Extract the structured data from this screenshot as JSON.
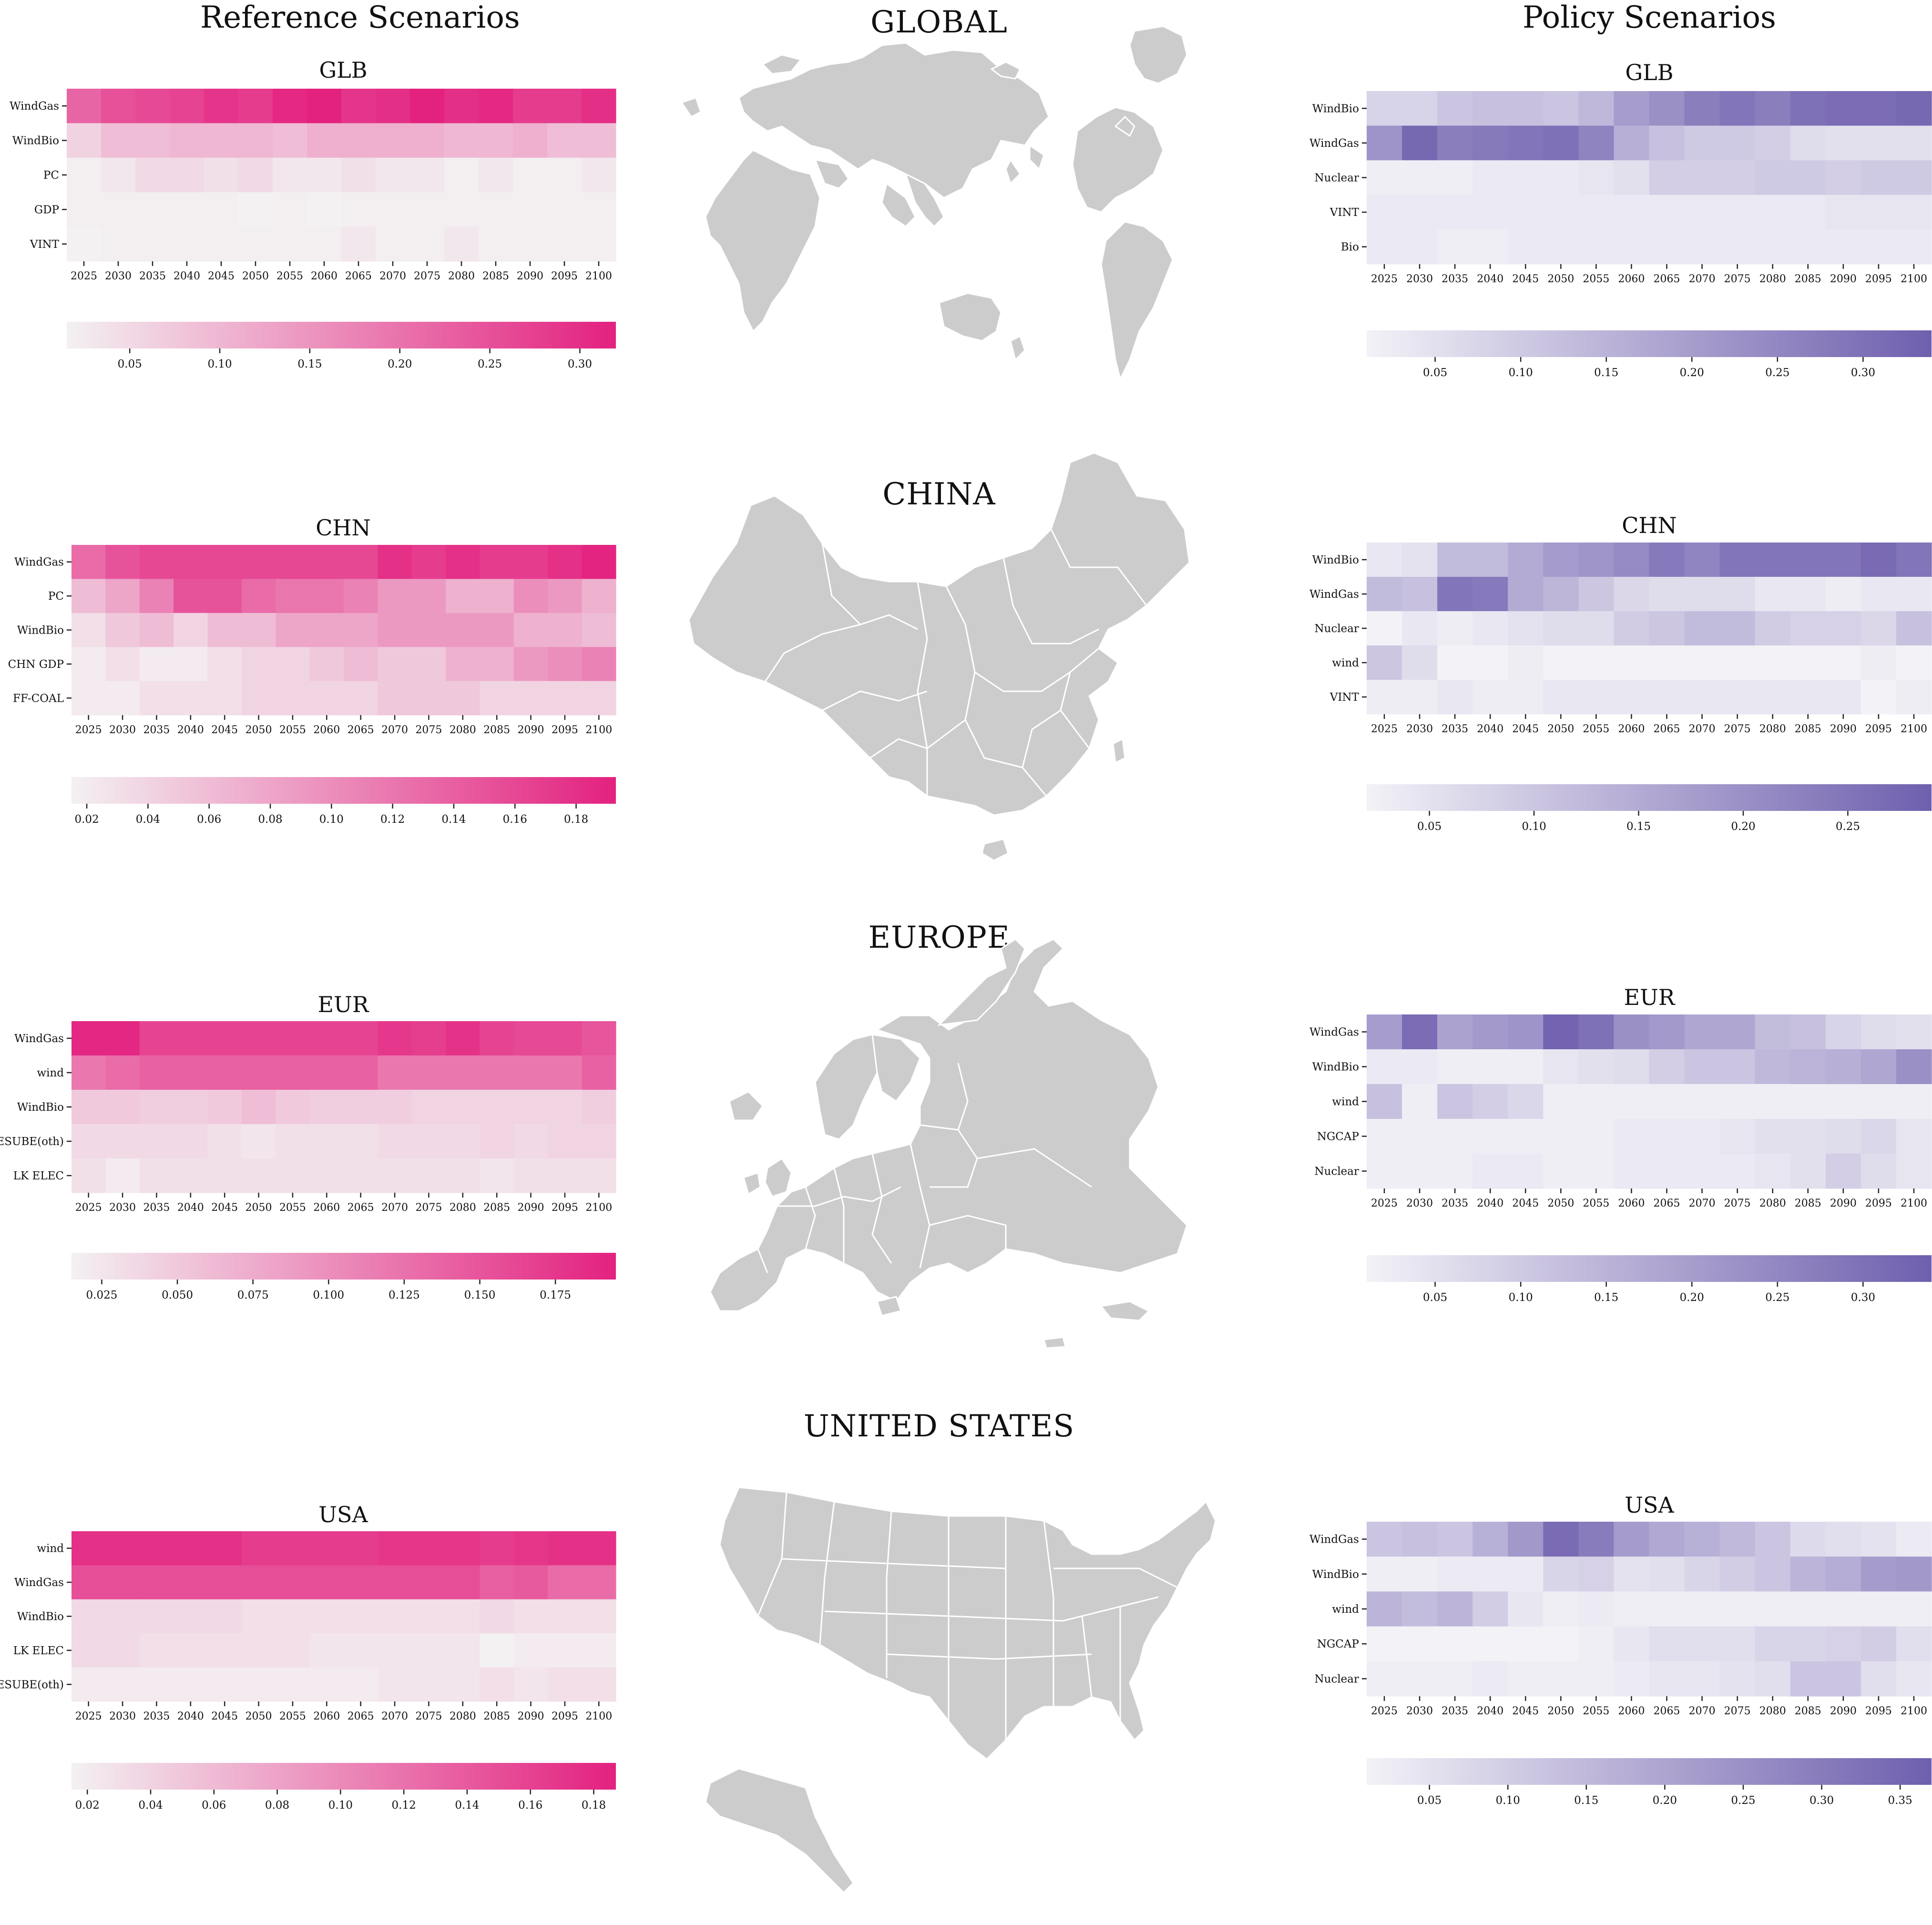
{
  "headers": {
    "reference": "Reference Scenarios",
    "policy": "Policy Scenarios"
  },
  "regions": {
    "global": "GLOBAL",
    "china": "CHINA",
    "europe": "EUROPE",
    "usa": "UNITED STATES"
  },
  "colors": {
    "reference_low": "#f3f1f2",
    "reference_high": "#e3217f",
    "policy_low": "#f3f2f7",
    "policy_high": "#6f5fae",
    "map_fill": "#cccccc",
    "map_border": "#ffffff"
  },
  "chart_data": [
    {
      "id": "ref-glb",
      "type": "heatmap",
      "palette": "reference",
      "title": "GLB",
      "x": [
        "2025",
        "2030",
        "2035",
        "2040",
        "2045",
        "2050",
        "2055",
        "2060",
        "2065",
        "2070",
        "2075",
        "2080",
        "2085",
        "2090",
        "2095",
        "2100"
      ],
      "y": [
        "WindGas",
        "WindBio",
        "PC",
        "GDP",
        "VINT"
      ],
      "values": [
        [
          0.22,
          0.25,
          0.26,
          0.27,
          0.29,
          0.28,
          0.31,
          0.32,
          0.29,
          0.3,
          0.32,
          0.3,
          0.31,
          0.28,
          0.28,
          0.3
        ],
        [
          0.06,
          0.09,
          0.09,
          0.1,
          0.1,
          0.1,
          0.09,
          0.11,
          0.11,
          0.11,
          0.11,
          0.1,
          0.1,
          0.11,
          0.09,
          0.09
        ],
        [
          0.02,
          0.03,
          0.05,
          0.05,
          0.04,
          0.05,
          0.03,
          0.03,
          0.04,
          0.03,
          0.03,
          0.02,
          0.03,
          0.02,
          0.02,
          0.03
        ],
        [
          0.02,
          0.02,
          0.02,
          0.02,
          0.02,
          0.01,
          0.02,
          0.01,
          0.02,
          0.02,
          0.02,
          0.02,
          0.02,
          0.02,
          0.02,
          0.02
        ],
        [
          0.01,
          0.02,
          0.02,
          0.02,
          0.02,
          0.02,
          0.02,
          0.02,
          0.03,
          0.02,
          0.02,
          0.03,
          0.02,
          0.02,
          0.02,
          0.02
        ]
      ],
      "cbar": {
        "min": 0.015,
        "max": 0.32,
        "ticks": [
          0.05,
          0.1,
          0.15,
          0.2,
          0.25,
          0.3
        ],
        "labels": [
          "0.05",
          "0.10",
          "0.15",
          "0.20",
          "0.25",
          "0.30"
        ]
      }
    },
    {
      "id": "pol-glb",
      "type": "heatmap",
      "palette": "policy",
      "title": "GLB",
      "x": [
        "2025",
        "2030",
        "2035",
        "2040",
        "2045",
        "2050",
        "2055",
        "2060",
        "2065",
        "2070",
        "2075",
        "2080",
        "2085",
        "2090",
        "2095",
        "2100"
      ],
      "y": [
        "WindBio",
        "WindGas",
        "Nuclear",
        "VINT",
        "Bio"
      ],
      "values": [
        [
          0.08,
          0.08,
          0.11,
          0.12,
          0.12,
          0.11,
          0.14,
          0.2,
          0.23,
          0.27,
          0.29,
          0.27,
          0.3,
          0.31,
          0.31,
          0.32
        ],
        [
          0.22,
          0.32,
          0.27,
          0.28,
          0.29,
          0.3,
          0.26,
          0.16,
          0.12,
          0.1,
          0.1,
          0.09,
          0.06,
          0.05,
          0.05,
          0.05
        ],
        [
          0.02,
          0.02,
          0.02,
          0.03,
          0.03,
          0.03,
          0.04,
          0.05,
          0.09,
          0.09,
          0.09,
          0.1,
          0.1,
          0.09,
          0.1,
          0.1
        ],
        [
          0.03,
          0.03,
          0.03,
          0.03,
          0.03,
          0.03,
          0.03,
          0.03,
          0.03,
          0.03,
          0.03,
          0.03,
          0.03,
          0.04,
          0.04,
          0.04
        ],
        [
          0.03,
          0.03,
          0.02,
          0.02,
          0.03,
          0.03,
          0.03,
          0.03,
          0.03,
          0.03,
          0.03,
          0.03,
          0.03,
          0.03,
          0.03,
          0.03
        ]
      ],
      "cbar": {
        "min": 0.01,
        "max": 0.34,
        "ticks": [
          0.05,
          0.1,
          0.15,
          0.2,
          0.25,
          0.3
        ],
        "labels": [
          "0.05",
          "0.10",
          "0.15",
          "0.20",
          "0.25",
          "0.30"
        ]
      }
    },
    {
      "id": "ref-chn",
      "type": "heatmap",
      "palette": "reference",
      "title": "CHN",
      "x": [
        "2025",
        "2030",
        "2035",
        "2040",
        "2045",
        "2050",
        "2055",
        "2060",
        "2065",
        "2070",
        "2075",
        "2080",
        "2085",
        "2090",
        "2095",
        "2100"
      ],
      "y": [
        "WindGas",
        "PC",
        "WindBio",
        "CHN GDP",
        "FF-COAL"
      ],
      "values": [
        [
          0.13,
          0.15,
          0.16,
          0.16,
          0.16,
          0.16,
          0.16,
          0.16,
          0.16,
          0.18,
          0.17,
          0.18,
          0.17,
          0.17,
          0.18,
          0.19
        ],
        [
          0.06,
          0.08,
          0.11,
          0.15,
          0.15,
          0.13,
          0.12,
          0.12,
          0.11,
          0.09,
          0.09,
          0.07,
          0.07,
          0.1,
          0.09,
          0.07
        ],
        [
          0.03,
          0.05,
          0.06,
          0.04,
          0.06,
          0.06,
          0.08,
          0.08,
          0.08,
          0.09,
          0.09,
          0.09,
          0.09,
          0.07,
          0.07,
          0.06
        ],
        [
          0.02,
          0.03,
          0.02,
          0.02,
          0.03,
          0.04,
          0.04,
          0.05,
          0.06,
          0.05,
          0.05,
          0.07,
          0.07,
          0.09,
          0.1,
          0.11
        ],
        [
          0.02,
          0.02,
          0.03,
          0.03,
          0.03,
          0.04,
          0.04,
          0.04,
          0.04,
          0.05,
          0.05,
          0.05,
          0.04,
          0.04,
          0.04,
          0.04
        ]
      ],
      "cbar": {
        "min": 0.015,
        "max": 0.193,
        "ticks": [
          0.02,
          0.04,
          0.06,
          0.08,
          0.1,
          0.12,
          0.14,
          0.16,
          0.18
        ],
        "labels": [
          "0.02",
          "0.04",
          "0.06",
          "0.08",
          "0.10",
          "0.12",
          "0.14",
          "0.16",
          "0.18"
        ]
      }
    },
    {
      "id": "pol-chn",
      "type": "heatmap",
      "palette": "policy",
      "title": "CHN",
      "x": [
        "2025",
        "2030",
        "2035",
        "2040",
        "2045",
        "2050",
        "2055",
        "2060",
        "2065",
        "2070",
        "2075",
        "2080",
        "2085",
        "2090",
        "2095",
        "2100"
      ],
      "y": [
        "WindBio",
        "WindGas",
        "Nuclear",
        "wind",
        "VINT"
      ],
      "values": [
        [
          0.04,
          0.05,
          0.12,
          0.12,
          0.15,
          0.18,
          0.19,
          0.21,
          0.24,
          0.22,
          0.25,
          0.25,
          0.25,
          0.25,
          0.27,
          0.25
        ],
        [
          0.12,
          0.11,
          0.25,
          0.24,
          0.15,
          0.13,
          0.1,
          0.07,
          0.06,
          0.06,
          0.06,
          0.04,
          0.04,
          0.03,
          0.04,
          0.04
        ],
        [
          0.02,
          0.04,
          0.03,
          0.04,
          0.05,
          0.06,
          0.06,
          0.09,
          0.1,
          0.12,
          0.12,
          0.09,
          0.08,
          0.08,
          0.07,
          0.11
        ],
        [
          0.1,
          0.06,
          0.02,
          0.02,
          0.03,
          0.02,
          0.02,
          0.02,
          0.02,
          0.02,
          0.02,
          0.02,
          0.02,
          0.02,
          0.03,
          0.02
        ],
        [
          0.03,
          0.03,
          0.04,
          0.03,
          0.03,
          0.04,
          0.04,
          0.04,
          0.04,
          0.04,
          0.04,
          0.04,
          0.04,
          0.04,
          0.02,
          0.03
        ]
      ],
      "cbar": {
        "min": 0.02,
        "max": 0.29,
        "ticks": [
          0.05,
          0.1,
          0.15,
          0.2,
          0.25
        ],
        "labels": [
          "0.05",
          "0.10",
          "0.15",
          "0.20",
          "0.25"
        ]
      }
    },
    {
      "id": "ref-eur",
      "type": "heatmap",
      "palette": "reference",
      "title": "EUR",
      "x": [
        "2025",
        "2030",
        "2035",
        "2040",
        "2045",
        "2050",
        "2055",
        "2060",
        "2065",
        "2070",
        "2075",
        "2080",
        "2085",
        "2090",
        "2095",
        "2100"
      ],
      "y": [
        "WindGas",
        "wind",
        "WindBio",
        "ESUBE(oth)",
        "LK ELEC"
      ],
      "values": [
        [
          0.19,
          0.19,
          0.165,
          0.165,
          0.165,
          0.165,
          0.165,
          0.165,
          0.165,
          0.175,
          0.17,
          0.18,
          0.165,
          0.16,
          0.16,
          0.15
        ],
        [
          0.12,
          0.13,
          0.14,
          0.14,
          0.14,
          0.14,
          0.14,
          0.14,
          0.14,
          0.12,
          0.12,
          0.12,
          0.12,
          0.12,
          0.12,
          0.14
        ],
        [
          0.05,
          0.05,
          0.045,
          0.045,
          0.05,
          0.06,
          0.05,
          0.045,
          0.045,
          0.045,
          0.04,
          0.04,
          0.04,
          0.04,
          0.04,
          0.045
        ],
        [
          0.035,
          0.035,
          0.035,
          0.035,
          0.03,
          0.025,
          0.03,
          0.03,
          0.03,
          0.035,
          0.035,
          0.035,
          0.04,
          0.035,
          0.04,
          0.04
        ],
        [
          0.03,
          0.02,
          0.03,
          0.03,
          0.03,
          0.03,
          0.03,
          0.03,
          0.03,
          0.03,
          0.03,
          0.03,
          0.025,
          0.03,
          0.03,
          0.03
        ]
      ],
      "cbar": {
        "min": 0.015,
        "max": 0.195,
        "ticks": [
          0.025,
          0.05,
          0.075,
          0.1,
          0.125,
          0.15,
          0.175
        ],
        "labels": [
          "0.025",
          "0.050",
          "0.075",
          "0.100",
          "0.125",
          "0.150",
          "0.175"
        ]
      }
    },
    {
      "id": "pol-eur",
      "type": "heatmap",
      "palette": "policy",
      "title": "EUR",
      "x": [
        "2025",
        "2030",
        "2035",
        "2040",
        "2045",
        "2050",
        "2055",
        "2060",
        "2065",
        "2070",
        "2075",
        "2080",
        "2085",
        "2090",
        "2095",
        "2100"
      ],
      "y": [
        "WindGas",
        "WindBio",
        "wind",
        "NGCAP",
        "Nuclear"
      ],
      "values": [
        [
          0.2,
          0.31,
          0.19,
          0.21,
          0.22,
          0.33,
          0.3,
          0.23,
          0.21,
          0.18,
          0.18,
          0.13,
          0.12,
          0.08,
          0.06,
          0.05
        ],
        [
          0.03,
          0.03,
          0.02,
          0.02,
          0.02,
          0.04,
          0.05,
          0.06,
          0.09,
          0.11,
          0.11,
          0.14,
          0.15,
          0.16,
          0.18,
          0.23
        ],
        [
          0.12,
          0.02,
          0.11,
          0.09,
          0.07,
          0.02,
          0.02,
          0.02,
          0.02,
          0.02,
          0.02,
          0.02,
          0.02,
          0.02,
          0.02,
          0.02
        ],
        [
          0.02,
          0.02,
          0.02,
          0.02,
          0.02,
          0.02,
          0.02,
          0.03,
          0.03,
          0.03,
          0.04,
          0.05,
          0.05,
          0.06,
          0.07,
          0.04
        ],
        [
          0.02,
          0.02,
          0.02,
          0.03,
          0.03,
          0.02,
          0.02,
          0.03,
          0.03,
          0.03,
          0.03,
          0.04,
          0.05,
          0.09,
          0.06,
          0.04
        ]
      ],
      "cbar": {
        "min": 0.01,
        "max": 0.34,
        "ticks": [
          0.05,
          0.1,
          0.15,
          0.2,
          0.25,
          0.3
        ],
        "labels": [
          "0.05",
          "0.10",
          "0.15",
          "0.20",
          "0.25",
          "0.30"
        ]
      }
    },
    {
      "id": "ref-usa",
      "type": "heatmap",
      "palette": "reference",
      "title": "USA",
      "x": [
        "2025",
        "2030",
        "2035",
        "2040",
        "2045",
        "2050",
        "2055",
        "2060",
        "2065",
        "2070",
        "2075",
        "2080",
        "2085",
        "2090",
        "2095",
        "2100"
      ],
      "y": [
        "wind",
        "WindGas",
        "WindBio",
        "LK ELEC",
        "ESUBE(oth)"
      ],
      "values": [
        [
          0.175,
          0.175,
          0.175,
          0.175,
          0.175,
          0.165,
          0.165,
          0.165,
          0.165,
          0.17,
          0.17,
          0.17,
          0.165,
          0.17,
          0.175,
          0.175
        ],
        [
          0.15,
          0.15,
          0.15,
          0.15,
          0.15,
          0.15,
          0.15,
          0.15,
          0.15,
          0.15,
          0.15,
          0.15,
          0.135,
          0.14,
          0.125,
          0.125
        ],
        [
          0.035,
          0.035,
          0.035,
          0.035,
          0.035,
          0.03,
          0.03,
          0.03,
          0.03,
          0.03,
          0.03,
          0.03,
          0.035,
          0.03,
          0.03,
          0.03
        ],
        [
          0.035,
          0.035,
          0.03,
          0.03,
          0.03,
          0.03,
          0.03,
          0.025,
          0.025,
          0.025,
          0.025,
          0.025,
          0.015,
          0.02,
          0.02,
          0.02
        ],
        [
          0.02,
          0.02,
          0.02,
          0.02,
          0.02,
          0.02,
          0.02,
          0.02,
          0.02,
          0.025,
          0.025,
          0.025,
          0.03,
          0.025,
          0.03,
          0.03
        ]
      ],
      "cbar": {
        "min": 0.015,
        "max": 0.187,
        "ticks": [
          0.02,
          0.04,
          0.06,
          0.08,
          0.1,
          0.12,
          0.14,
          0.16,
          0.18
        ],
        "labels": [
          "0.02",
          "0.04",
          "0.06",
          "0.08",
          "0.10",
          "0.12",
          "0.14",
          "0.16",
          "0.18"
        ]
      }
    },
    {
      "id": "pol-usa",
      "type": "heatmap",
      "palette": "policy",
      "title": "USA",
      "x": [
        "2025",
        "2030",
        "2035",
        "2040",
        "2045",
        "2050",
        "2055",
        "2060",
        "2065",
        "2070",
        "2075",
        "2080",
        "2085",
        "2090",
        "2095",
        "2100"
      ],
      "y": [
        "WindGas",
        "WindBio",
        "wind",
        "NGCAP",
        "Nuclear"
      ],
      "values": [
        [
          0.12,
          0.13,
          0.12,
          0.17,
          0.23,
          0.34,
          0.3,
          0.22,
          0.19,
          0.17,
          0.15,
          0.12,
          0.07,
          0.06,
          0.05,
          0.03
        ],
        [
          0.02,
          0.02,
          0.03,
          0.03,
          0.03,
          0.08,
          0.09,
          0.05,
          0.06,
          0.08,
          0.1,
          0.12,
          0.16,
          0.18,
          0.22,
          0.23
        ],
        [
          0.16,
          0.14,
          0.16,
          0.1,
          0.04,
          0.02,
          0.03,
          0.02,
          0.02,
          0.02,
          0.02,
          0.02,
          0.02,
          0.02,
          0.02,
          0.02
        ],
        [
          0.01,
          0.01,
          0.01,
          0.01,
          0.01,
          0.01,
          0.02,
          0.04,
          0.06,
          0.06,
          0.06,
          0.08,
          0.08,
          0.09,
          0.1,
          0.06
        ],
        [
          0.02,
          0.02,
          0.02,
          0.03,
          0.02,
          0.02,
          0.02,
          0.03,
          0.04,
          0.04,
          0.05,
          0.06,
          0.12,
          0.12,
          0.06,
          0.04
        ]
      ],
      "cbar": {
        "min": 0.01,
        "max": 0.37,
        "ticks": [
          0.05,
          0.1,
          0.15,
          0.2,
          0.25,
          0.3,
          0.35
        ],
        "labels": [
          "0.05",
          "0.10",
          "0.15",
          "0.20",
          "0.25",
          "0.30",
          "0.35"
        ]
      }
    }
  ]
}
